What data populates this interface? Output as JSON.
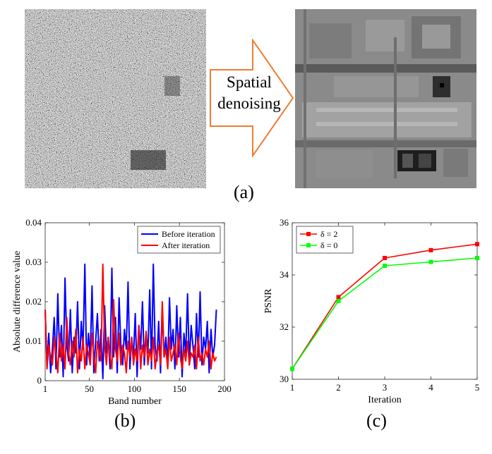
{
  "panel_a": {
    "arrow_text_line1": "Spatial",
    "arrow_text_line2": "denoising",
    "arrow_color": "#ED7D31",
    "caption": "(a)"
  },
  "chart_data": [
    {
      "type": "line",
      "caption": "(b)",
      "xlabel": "Band number",
      "ylabel": "Absolute difference value",
      "xlim": [
        1,
        200
      ],
      "ylim": [
        0,
        0.04
      ],
      "xticks": [
        1,
        50,
        100,
        150,
        200
      ],
      "yticks": [
        0,
        0.01,
        0.02,
        0.03,
        0.04
      ],
      "xtick_labels": [
        "1",
        "50",
        "100",
        "150",
        "200"
      ],
      "ytick_labels": [
        "0",
        "0.01",
        "0.02",
        "0.03",
        "0.04"
      ],
      "legend_position": "top-right",
      "series": [
        {
          "name": "Before iteration",
          "color": "#0000FF",
          "x": [
            1,
            3,
            5,
            7,
            9,
            11,
            13,
            15,
            17,
            19,
            21,
            23,
            25,
            27,
            29,
            31,
            33,
            35,
            37,
            39,
            41,
            43,
            45,
            47,
            49,
            51,
            53,
            55,
            57,
            59,
            61,
            63,
            65,
            67,
            69,
            71,
            73,
            75,
            77,
            79,
            81,
            83,
            85,
            87,
            89,
            91,
            93,
            95,
            97,
            99,
            101,
            103,
            105,
            107,
            109,
            111,
            113,
            115,
            117,
            119,
            121,
            123,
            125,
            127,
            129,
            131,
            133,
            135,
            137,
            139,
            141,
            143,
            145,
            147,
            149,
            151,
            153,
            155,
            157,
            159,
            161,
            163,
            165,
            167,
            169,
            171,
            173,
            175,
            177,
            179,
            181,
            183,
            185,
            187,
            189,
            191
          ],
          "values": [
            0.018,
            0.004,
            0.012,
            0.002,
            0.008,
            0.016,
            0.003,
            0.022,
            0.006,
            0.014,
            0.001,
            0.026,
            0.009,
            0.005,
            0.018,
            0.002,
            0.011,
            0.007,
            0.02,
            0.003,
            0.015,
            0.008,
            0.0295,
            0.004,
            0.012,
            0.006,
            0.024,
            0.002,
            0.01,
            0.017,
            0.005,
            0.013,
            0.0005,
            0.019,
            0.007,
            0.011,
            0.003,
            0.0285,
            0.006,
            0.016,
            0.002,
            0.021,
            0.009,
            0.004,
            0.013,
            0.008,
            0.025,
            0.003,
            0.011,
            0.006,
            0.017,
            0.001,
            0.014,
            0.008,
            0.02,
            0.004,
            0.012,
            0.007,
            0.023,
            0.003,
            0.0295,
            0.009,
            0.005,
            0.015,
            0.002,
            0.018,
            0.006,
            0.011,
            0.004,
            0.021,
            0.008,
            0.013,
            0.003,
            0.019,
            0.006,
            0.016,
            0.001,
            0.012,
            0.007,
            0.022,
            0.004,
            0.014,
            0.009,
            0.003,
            0.017,
            0.006,
            0.0225,
            0.004,
            0.011,
            0.008,
            0.015,
            0.002,
            0.013,
            0.006,
            0.009,
            0.018
          ]
        },
        {
          "name": "After iteration",
          "color": "#FF0000",
          "x": [
            1,
            3,
            5,
            7,
            9,
            11,
            13,
            15,
            17,
            19,
            21,
            23,
            25,
            27,
            29,
            31,
            33,
            35,
            37,
            39,
            41,
            43,
            45,
            47,
            49,
            51,
            53,
            55,
            57,
            59,
            61,
            63,
            65,
            67,
            69,
            71,
            73,
            75,
            77,
            79,
            81,
            83,
            85,
            87,
            89,
            91,
            93,
            95,
            97,
            99,
            101,
            103,
            105,
            107,
            109,
            111,
            113,
            115,
            117,
            119,
            121,
            123,
            125,
            127,
            129,
            131,
            133,
            135,
            137,
            139,
            141,
            143,
            145,
            147,
            149,
            151,
            153,
            155,
            157,
            159,
            161,
            163,
            165,
            167,
            169,
            171,
            173,
            175,
            177,
            179,
            181,
            183,
            185,
            187,
            189,
            191
          ],
          "values": [
            0.018,
            0.003,
            0.009,
            0.006,
            0.004,
            0.011,
            0.007,
            0.002,
            0.012,
            0.005,
            0.009,
            0.003,
            0.016,
            0.007,
            0.004,
            0.01,
            0.006,
            0.013,
            0.002,
            0.008,
            0.005,
            0.011,
            0.003,
            0.009,
            0.007,
            0.004,
            0.012,
            0.006,
            0.002,
            0.01,
            0.007,
            0.005,
            0.0295,
            0.009,
            0.004,
            0.011,
            0.006,
            0.003,
            0.0205,
            0.008,
            0.005,
            0.012,
            0.004,
            0.009,
            0.007,
            0.002,
            0.01,
            0.006,
            0.011,
            0.004,
            0.008,
            0.005,
            0.014,
            0.003,
            0.009,
            0.006,
            0.0125,
            0.004,
            0.008,
            0.005,
            0.011,
            0.003,
            0.007,
            0.009,
            0.004,
            0.02,
            0.006,
            0.008,
            0.003,
            0.011,
            0.005,
            0.007,
            0.009,
            0.004,
            0.012,
            0.006,
            0.003,
            0.008,
            0.005,
            0.01,
            0.004,
            0.007,
            0.006,
            0.009,
            0.003,
            0.011,
            0.005,
            0.007,
            0.004,
            0.008,
            0.006,
            0.01,
            0.003,
            0.007,
            0.005,
            0.006
          ]
        }
      ]
    },
    {
      "type": "line",
      "caption": "(c)",
      "xlabel": "Iteration",
      "ylabel": "PSNR",
      "xlim": [
        1,
        5
      ],
      "ylim": [
        30,
        36
      ],
      "xticks": [
        1,
        2,
        3,
        4,
        5
      ],
      "yticks": [
        30,
        32,
        34,
        36
      ],
      "xtick_labels": [
        "1",
        "2",
        "3",
        "4",
        "5"
      ],
      "ytick_labels": [
        "30",
        "32",
        "34",
        "36"
      ],
      "legend_position": "top-left",
      "series": [
        {
          "name": "δ = 2",
          "color": "#FF0000",
          "marker": "square",
          "x": [
            1,
            2,
            3,
            4,
            5
          ],
          "values": [
            30.4,
            33.15,
            34.65,
            34.95,
            35.18
          ]
        },
        {
          "name": "δ = 0",
          "color": "#00FF00",
          "marker": "square",
          "x": [
            1,
            2,
            3,
            4,
            5
          ],
          "values": [
            30.4,
            33.0,
            34.35,
            34.5,
            34.65
          ]
        }
      ]
    }
  ]
}
